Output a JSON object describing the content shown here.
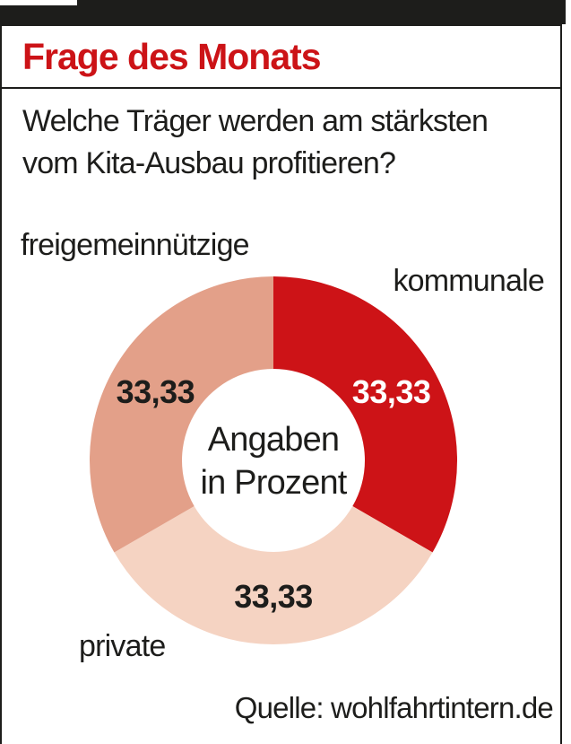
{
  "header": {
    "title": "Frage des Monats"
  },
  "question": {
    "line1": "Welche Träger werden am stärksten",
    "line2": "vom Kita-Ausbau profitieren?"
  },
  "chart_data": {
    "type": "pie",
    "subtype": "donut",
    "title": "Frage des Monats",
    "question": "Welche Träger werden am stärksten vom Kita-Ausbau profitieren?",
    "categories": [
      "kommunale",
      "private",
      "freigemeinnützige"
    ],
    "values": [
      33.33,
      33.33,
      33.33
    ],
    "start_angle_deg": 0,
    "direction": "clockwise",
    "slices": [
      {
        "label": "kommunale",
        "value": 33.33,
        "display_value": "33,33",
        "color": "#cd1317",
        "value_label_color": "#ffffff"
      },
      {
        "label": "private",
        "value": 33.33,
        "display_value": "33,33",
        "color": "#f5d3c2",
        "value_label_color": "#1d1d1b"
      },
      {
        "label": "freigemeinnützige",
        "value": 33.33,
        "display_value": "33,33",
        "color": "#e3a089",
        "value_label_color": "#1d1d1b"
      }
    ],
    "center_label_line1": "Angaben",
    "center_label_line2": "in Prozent",
    "unit_note": "Angaben in Prozent",
    "legend_position": "around-chart"
  },
  "source": {
    "label": "Quelle: wohlfahrtintern.de"
  },
  "colors": {
    "accent_red": "#cc1317",
    "frame_black": "#1d1d1b",
    "background": "#ffffff"
  }
}
